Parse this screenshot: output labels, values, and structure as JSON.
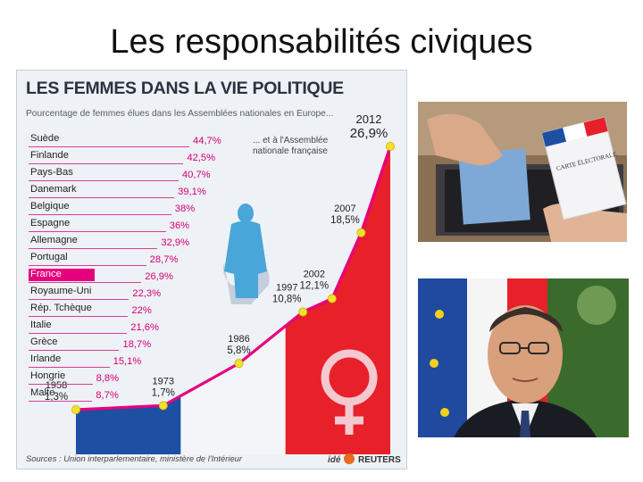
{
  "slide": {
    "title": "Les responsabilités civiques"
  },
  "chart_data": [
    {
      "type": "bar",
      "title": "LES FEMMES DANS LA VIE POLITIQUE",
      "subtitle": "Pourcentage de femmes élues dans les Assemblées nationales en Europe...",
      "categories": [
        "Suède",
        "Finlande",
        "Pays-Bas",
        "Danemark",
        "Belgique",
        "Espagne",
        "Allemagne",
        "Portugal",
        "France",
        "Royaume-Uni",
        "Rép. Tchèque",
        "Italie",
        "Grèce",
        "Irlande",
        "Hongrie",
        "Malte"
      ],
      "values": [
        44.7,
        42.5,
        40.7,
        39.1,
        38,
        36,
        32.9,
        28.7,
        26.9,
        22.3,
        22,
        21.6,
        18.7,
        15.1,
        8.8,
        8.7
      ],
      "value_labels": [
        "44,7%",
        "42,5%",
        "40,7%",
        "39,1%",
        "38%",
        "36%",
        "32,9%",
        "28,7%",
        "26,9%",
        "22,3%",
        "22%",
        "21,6%",
        "18,7%",
        "15,1%",
        "8,8%",
        "8,7%"
      ],
      "highlight": "France",
      "unit": "%"
    },
    {
      "type": "line",
      "title": "... et à l'Assemblée nationale française",
      "x": [
        1958,
        1973,
        1986,
        1997,
        2002,
        2007,
        2012
      ],
      "x_labels": [
        "1958",
        "1973",
        "1986",
        "1997",
        "2002",
        "2007",
        "2012"
      ],
      "values": [
        1.3,
        1.7,
        5.8,
        10.8,
        12.1,
        18.5,
        26.9
      ],
      "value_labels": [
        "1,3%",
        "1,7%",
        "5,8%",
        "10,8%",
        "12,1%",
        "18,5%",
        "26,9%"
      ],
      "line_color": "#e6007e",
      "marker_color": "#f2e12a"
    }
  ],
  "sources": "Sources : Union interparlementaire, ministère de l'Intérieur",
  "credit": {
    "ide": "idé",
    "agency": "REUTERS"
  },
  "photos": {
    "ballot_card_text": "CARTE ÉLECTORALE"
  },
  "colors": {
    "accent": "#e6007e",
    "marker": "#f2e12a",
    "flag_blue": "#1d4fa3",
    "flag_red": "#e8202a"
  }
}
